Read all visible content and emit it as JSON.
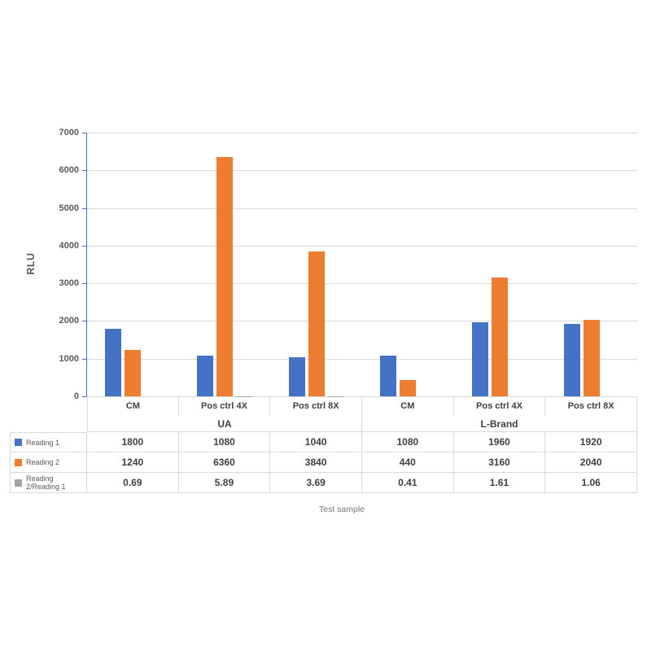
{
  "chart_data": {
    "type": "bar",
    "title": "",
    "ylabel": "RLU",
    "xlabel": "Test sample",
    "ylim": [
      0,
      7000
    ],
    "ytick_interval": 1000,
    "ytick_labels": [
      "0",
      "1000",
      "2000",
      "3000",
      "4000",
      "5000",
      "6000",
      "7000"
    ],
    "grid": true,
    "legend_position": "data-table-left",
    "group_labels": [
      "UA",
      "L-Brand"
    ],
    "categories": [
      "CM",
      "Pos ctrl 4X",
      "Pos ctrl 8X",
      "CM",
      "Pos ctrl 4X",
      "Pos ctrl 8X"
    ],
    "series": [
      {
        "name": "Reading 1",
        "color": "#4472C4",
        "values": [
          1800,
          1080,
          1040,
          1080,
          1960,
          1920
        ]
      },
      {
        "name": "Reading 2",
        "color": "#ED7D31",
        "values": [
          1240,
          6360,
          3840,
          440,
          3160,
          2040
        ]
      },
      {
        "name": "Reading 2/Reading 1",
        "color": "#A5A5A5",
        "values": [
          0.69,
          5.89,
          3.69,
          0.41,
          1.61,
          1.06
        ]
      }
    ]
  },
  "data_table": {
    "header_categories": [
      "CM",
      "Pos ctrl 4X",
      "Pos ctrl 8X",
      "CM",
      "Pos ctrl 4X",
      "Pos ctrl 8X"
    ],
    "header_groups": [
      {
        "label": "UA",
        "span": 3
      },
      {
        "label": "L-Brand",
        "span": 3
      }
    ],
    "rows": [
      {
        "legend": "Reading 1",
        "swatch_color": "#4472C4",
        "cells": [
          "1800",
          "1080",
          "1040",
          "1080",
          "1960",
          "1920"
        ]
      },
      {
        "legend": "Reading 2",
        "swatch_color": "#ED7D31",
        "cells": [
          "1240",
          "6360",
          "3840",
          "440",
          "3160",
          "2040"
        ]
      },
      {
        "legend": "Reading 2/Reading 1",
        "swatch_color": "#A5A5A5",
        "cells": [
          "0.69",
          "5.89",
          "3.69",
          "0.41",
          "1.61",
          "1.06"
        ]
      }
    ]
  },
  "colors": {
    "series_blue": "#4472C4",
    "series_orange": "#ED7D31",
    "series_gray": "#A5A5A5",
    "gridline": "#D9D9D9",
    "axis_line": "#4472C4",
    "table_border": "#D9D9D9",
    "text_dark": "#404040",
    "text_muted": "#595959"
  }
}
